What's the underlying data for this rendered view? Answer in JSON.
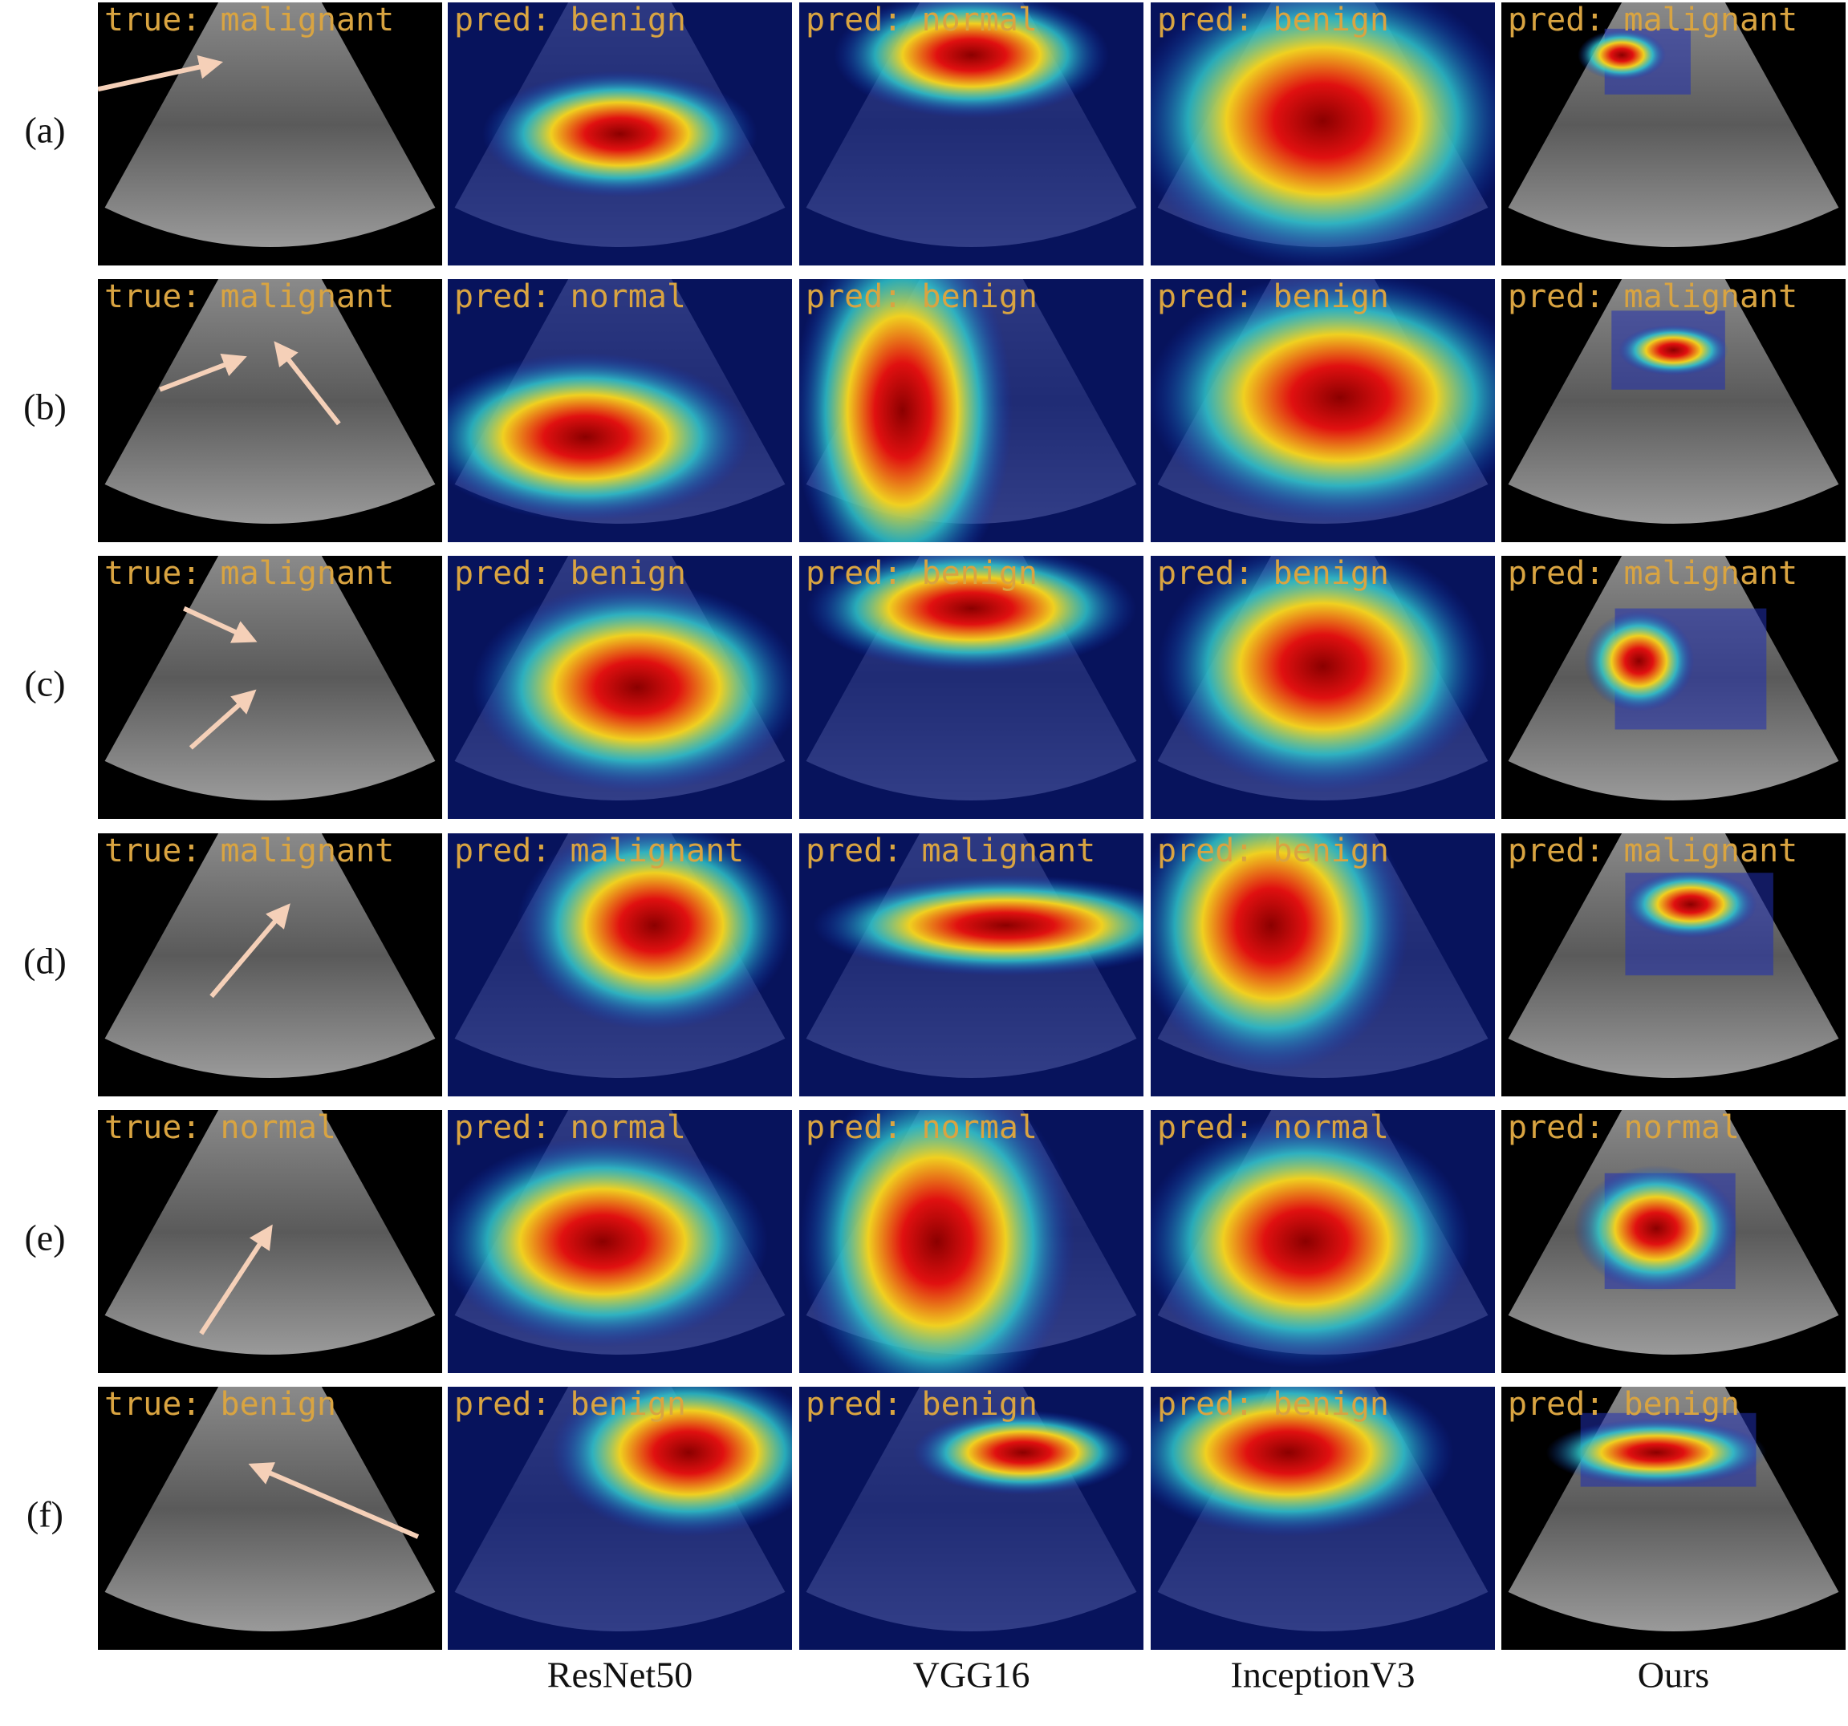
{
  "rows": [
    {
      "label": "(a)",
      "cells": [
        "true: malignant",
        "pred: benign",
        "pred: normal",
        "pred: benign",
        "pred: malignant"
      ]
    },
    {
      "label": "(b)",
      "cells": [
        "true: malignant",
        "pred: normal",
        "pred: benign",
        "pred: benign",
        "pred: malignant"
      ]
    },
    {
      "label": "(c)",
      "cells": [
        "true: malignant",
        "pred: benign",
        "pred: benign",
        "pred: benign",
        "pred: malignant"
      ]
    },
    {
      "label": "(d)",
      "cells": [
        "true: malignant",
        "pred: malignant",
        "pred: malignant",
        "pred: benign",
        "pred: malignant"
      ]
    },
    {
      "label": "(e)",
      "cells": [
        "true: normal",
        "pred: normal",
        "pred: normal",
        "pred: normal",
        "pred: normal"
      ]
    },
    {
      "label": "(f)",
      "cells": [
        "true: benign",
        "pred: benign",
        "pred: benign",
        "pred: benign",
        "pred: benign"
      ]
    }
  ],
  "columns": [
    "ResNet50",
    "VGG16",
    "InceptionV3",
    "Ours"
  ]
}
